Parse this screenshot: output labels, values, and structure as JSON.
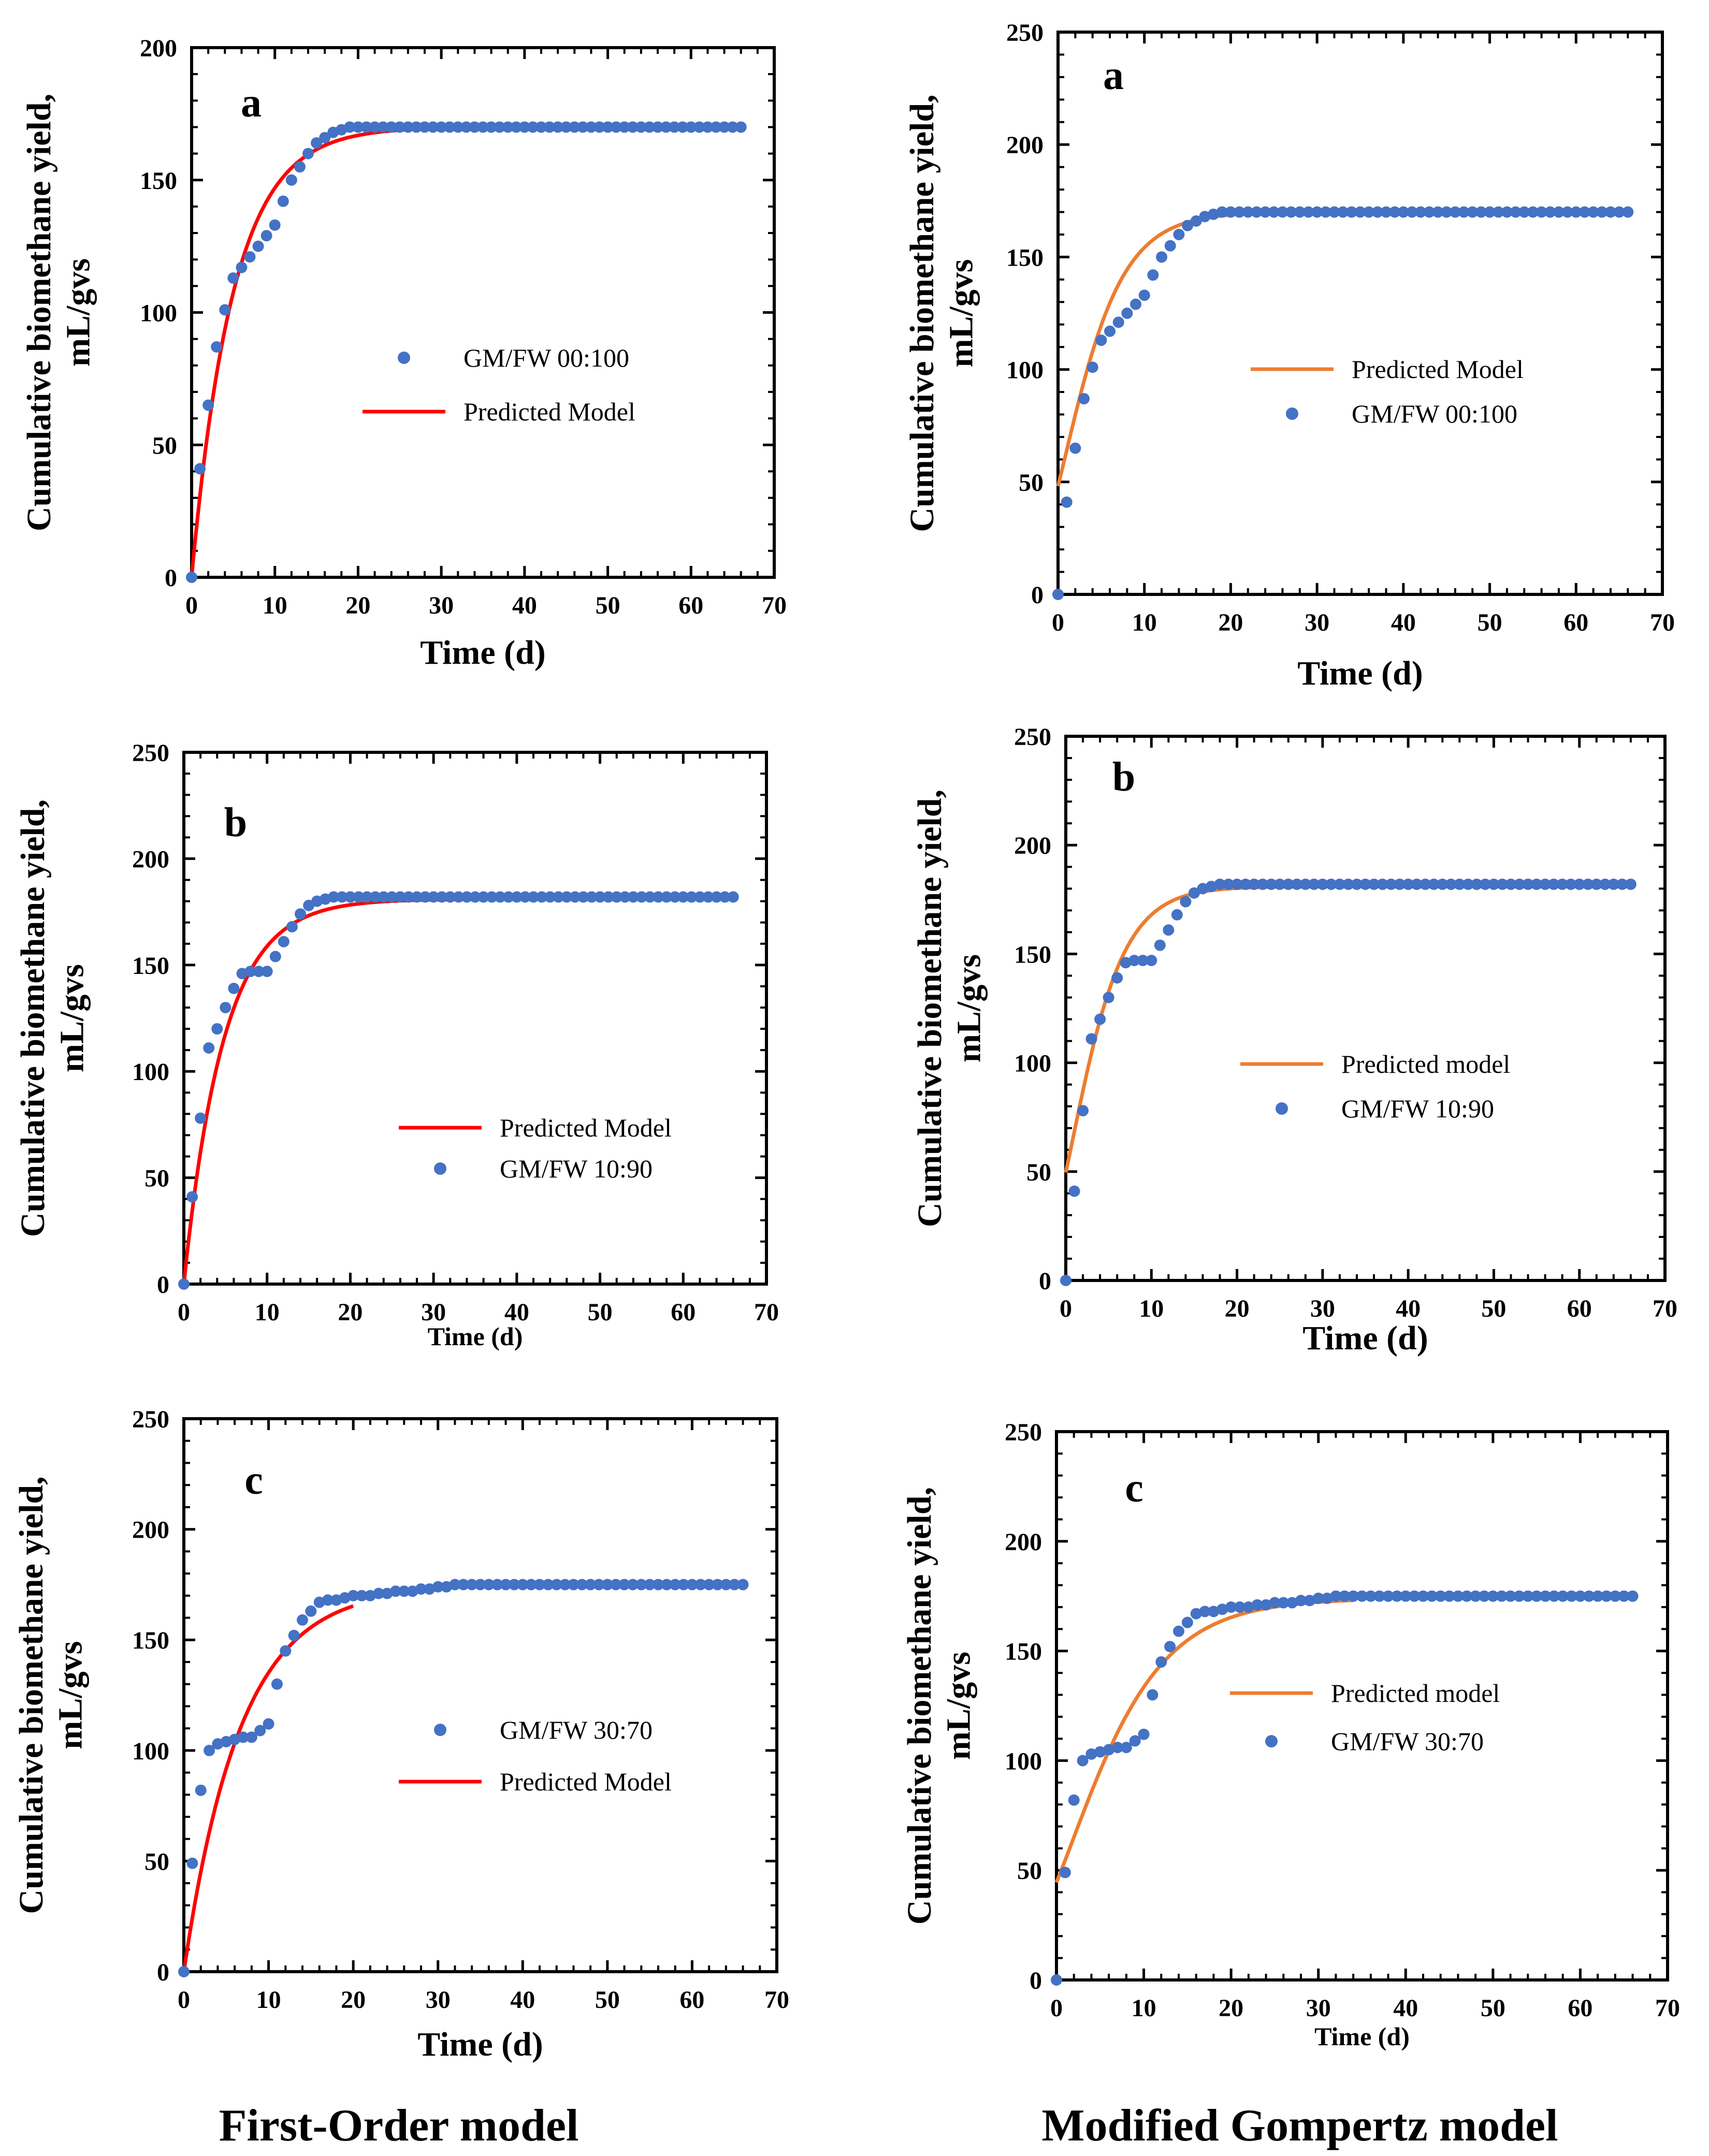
{
  "footer": {
    "left": "First-Order model",
    "right": "Modified Gompertz model"
  },
  "chart_data": [
    {
      "type": "scatter",
      "panel": "a",
      "model": "First-Order model",
      "title": "a",
      "xlabel": "Time (d)",
      "ylabel": "Cumulative biomethane yield, mL/gvs",
      "xlim": [
        0,
        70
      ],
      "ylim": [
        0,
        200
      ],
      "xticks": [
        "0",
        "10",
        "20",
        "30",
        "40",
        "50",
        "60",
        "70"
      ],
      "yticks": [
        "0",
        "50",
        "100",
        "150",
        "200"
      ],
      "legend": [
        {
          "label": "GM/FW 00:100",
          "kind": "marker",
          "color": "#4472C4"
        },
        {
          "label": "Predicted Model",
          "kind": "line",
          "color": "#FF0000"
        }
      ],
      "observed": {
        "name": "GM/FW 00:100",
        "x": [
          0,
          1,
          2,
          3,
          4,
          5,
          6,
          7,
          8,
          9,
          10,
          11,
          12,
          13,
          14,
          15,
          16,
          17,
          18,
          19,
          20,
          21,
          22,
          23,
          24,
          25,
          26,
          27,
          28,
          29,
          30,
          31,
          32,
          33,
          34,
          35,
          36,
          37,
          38,
          39,
          40,
          41,
          42,
          43,
          44,
          45,
          46,
          47,
          48,
          49,
          50,
          51,
          52,
          53,
          54,
          55,
          56,
          57,
          58,
          59,
          60,
          61,
          62,
          63,
          64,
          65,
          66
        ],
        "y": [
          0,
          41,
          65,
          87,
          101,
          113,
          117,
          121,
          125,
          129,
          133,
          142,
          150,
          155,
          160,
          164,
          166,
          168,
          169,
          170,
          170,
          170,
          170,
          170,
          170,
          170,
          170,
          170,
          170,
          170,
          170,
          170,
          170,
          170,
          170,
          170,
          170,
          170,
          170,
          170,
          170,
          170,
          170,
          170,
          170,
          170,
          170,
          170,
          170,
          170,
          170,
          170,
          170,
          170,
          170,
          170,
          170,
          170,
          170,
          170,
          170,
          170,
          170,
          170,
          170,
          170,
          170
        ]
      },
      "predicted": {
        "name": "Predicted Model",
        "model": "first-order",
        "P": 170,
        "k": 0.2,
        "x0": 0,
        "x1": 66
      }
    },
    {
      "type": "scatter",
      "panel": "a",
      "model": "Modified Gompertz model",
      "title": "a",
      "xlabel": "Time (d)",
      "ylabel": "Cumulative biomethane yield, mL/gvs",
      "xlim": [
        0,
        70
      ],
      "ylim": [
        0,
        250
      ],
      "xticks": [
        "0",
        "10",
        "20",
        "30",
        "40",
        "50",
        "60",
        "70"
      ],
      "yticks": [
        "0",
        "50",
        "100",
        "150",
        "200",
        "250"
      ],
      "legend": [
        {
          "label": "Predicted Model",
          "kind": "line",
          "color": "#ED7D31"
        },
        {
          "label": "GM/FW 00:100",
          "kind": "marker",
          "color": "#4472C4"
        }
      ],
      "observed": {
        "name": "GM/FW 00:100",
        "x": [
          0,
          1,
          2,
          3,
          4,
          5,
          6,
          7,
          8,
          9,
          10,
          11,
          12,
          13,
          14,
          15,
          16,
          17,
          18,
          19,
          20,
          21,
          22,
          23,
          24,
          25,
          26,
          27,
          28,
          29,
          30,
          31,
          32,
          33,
          34,
          35,
          36,
          37,
          38,
          39,
          40,
          41,
          42,
          43,
          44,
          45,
          46,
          47,
          48,
          49,
          50,
          51,
          52,
          53,
          54,
          55,
          56,
          57,
          58,
          59,
          60,
          61,
          62,
          63,
          64,
          65,
          66
        ],
        "y": [
          0,
          41,
          65,
          87,
          101,
          113,
          117,
          121,
          125,
          129,
          133,
          142,
          150,
          155,
          160,
          164,
          166,
          168,
          169,
          170,
          170,
          170,
          170,
          170,
          170,
          170,
          170,
          170,
          170,
          170,
          170,
          170,
          170,
          170,
          170,
          170,
          170,
          170,
          170,
          170,
          170,
          170,
          170,
          170,
          170,
          170,
          170,
          170,
          170,
          170,
          170,
          170,
          170,
          170,
          170,
          170,
          170,
          170,
          170,
          170,
          170,
          170,
          170,
          170,
          170,
          170,
          170
        ]
      },
      "predicted": {
        "name": "Predicted Model",
        "model": "gompertz",
        "P": 170,
        "Rm": 16,
        "lambda": -3.0,
        "x0": 0,
        "x1": 66
      }
    },
    {
      "type": "scatter",
      "panel": "b",
      "model": "First-Order model",
      "title": "b",
      "xlabel": "Time (d)",
      "ylabel": "Cumulative biomethane yield, mL/gvs",
      "xlim": [
        0,
        70
      ],
      "ylim": [
        0,
        250
      ],
      "xticks": [
        "0",
        "10",
        "20",
        "30",
        "40",
        "50",
        "60",
        "70"
      ],
      "yticks": [
        "0",
        "50",
        "100",
        "150",
        "200",
        "250"
      ],
      "legend": [
        {
          "label": "Predicted Model",
          "kind": "line",
          "color": "#FF0000"
        },
        {
          "label": "GM/FW 10:90",
          "kind": "marker",
          "color": "#4472C4"
        }
      ],
      "observed": {
        "name": "GM/FW 10:90",
        "x": [
          0,
          1,
          2,
          3,
          4,
          5,
          6,
          7,
          8,
          9,
          10,
          11,
          12,
          13,
          14,
          15,
          16,
          17,
          18,
          19,
          20,
          21,
          22,
          23,
          24,
          25,
          26,
          27,
          28,
          29,
          30,
          31,
          32,
          33,
          34,
          35,
          36,
          37,
          38,
          39,
          40,
          41,
          42,
          43,
          44,
          45,
          46,
          47,
          48,
          49,
          50,
          51,
          52,
          53,
          54,
          55,
          56,
          57,
          58,
          59,
          60,
          61,
          62,
          63,
          64,
          65,
          66
        ],
        "y": [
          0,
          41,
          78,
          111,
          120,
          130,
          139,
          146,
          147,
          147,
          147,
          154,
          161,
          168,
          174,
          178,
          180,
          181,
          182,
          182,
          182,
          182,
          182,
          182,
          182,
          182,
          182,
          182,
          182,
          182,
          182,
          182,
          182,
          182,
          182,
          182,
          182,
          182,
          182,
          182,
          182,
          182,
          182,
          182,
          182,
          182,
          182,
          182,
          182,
          182,
          182,
          182,
          182,
          182,
          182,
          182,
          182,
          182,
          182,
          182,
          182,
          182,
          182,
          182,
          182,
          182,
          182
        ]
      },
      "predicted": {
        "name": "Predicted Model",
        "model": "first-order",
        "P": 181,
        "k": 0.21,
        "x0": 0,
        "x1": 66
      }
    },
    {
      "type": "scatter",
      "panel": "b",
      "model": "Modified Gompertz model",
      "title": "b",
      "xlabel": "Time (d)",
      "ylabel": "Cumulative biomethane yield, mL/gvs",
      "xlim": [
        0,
        70
      ],
      "ylim": [
        0,
        250
      ],
      "xticks": [
        "0",
        "10",
        "20",
        "30",
        "40",
        "50",
        "60",
        "70"
      ],
      "yticks": [
        "0",
        "50",
        "100",
        "150",
        "200",
        "250"
      ],
      "legend": [
        {
          "label": "Predicted model",
          "kind": "line",
          "color": "#ED7D31"
        },
        {
          "label": "GM/FW 10:90",
          "kind": "marker",
          "color": "#4472C4"
        }
      ],
      "observed": {
        "name": "GM/FW 10:90",
        "x": [
          0,
          1,
          2,
          3,
          4,
          5,
          6,
          7,
          8,
          9,
          10,
          11,
          12,
          13,
          14,
          15,
          16,
          17,
          18,
          19,
          20,
          21,
          22,
          23,
          24,
          25,
          26,
          27,
          28,
          29,
          30,
          31,
          32,
          33,
          34,
          35,
          36,
          37,
          38,
          39,
          40,
          41,
          42,
          43,
          44,
          45,
          46,
          47,
          48,
          49,
          50,
          51,
          52,
          53,
          54,
          55,
          56,
          57,
          58,
          59,
          60,
          61,
          62,
          63,
          64,
          65,
          66
        ],
        "y": [
          0,
          41,
          78,
          111,
          120,
          130,
          139,
          146,
          147,
          147,
          147,
          154,
          161,
          168,
          174,
          178,
          180,
          181,
          182,
          182,
          182,
          182,
          182,
          182,
          182,
          182,
          182,
          182,
          182,
          182,
          182,
          182,
          182,
          182,
          182,
          182,
          182,
          182,
          182,
          182,
          182,
          182,
          182,
          182,
          182,
          182,
          182,
          182,
          182,
          182,
          182,
          182,
          182,
          182,
          182,
          182,
          182,
          182,
          182,
          182,
          182,
          182,
          182,
          182,
          182,
          182,
          182
        ]
      },
      "predicted": {
        "name": "Predicted model",
        "model": "gompertz",
        "P": 181,
        "Rm": 19,
        "lambda": -2.6,
        "x0": 0,
        "x1": 66
      }
    },
    {
      "type": "scatter",
      "panel": "c",
      "model": "First-Order model",
      "title": "c",
      "xlabel": "Time (d)",
      "ylabel": "Cumulative biomethane yield, mL/gvs",
      "xlim": [
        0,
        70
      ],
      "ylim": [
        0,
        250
      ],
      "xticks": [
        "0",
        "10",
        "20",
        "30",
        "40",
        "50",
        "60",
        "70"
      ],
      "yticks": [
        "0",
        "50",
        "100",
        "150",
        "200",
        "250"
      ],
      "legend": [
        {
          "label": "GM/FW 30:70",
          "kind": "marker",
          "color": "#4472C4"
        },
        {
          "label": "Predicted Model",
          "kind": "line",
          "color": "#FF0000"
        }
      ],
      "observed": {
        "name": "GM/FW 30:70",
        "x": [
          0,
          1,
          2,
          3,
          4,
          5,
          6,
          7,
          8,
          9,
          10,
          11,
          12,
          13,
          14,
          15,
          16,
          17,
          18,
          19,
          20,
          21,
          22,
          23,
          24,
          25,
          26,
          27,
          28,
          29,
          30,
          31,
          32,
          33,
          34,
          35,
          36,
          37,
          38,
          39,
          40,
          41,
          42,
          43,
          44,
          45,
          46,
          47,
          48,
          49,
          50,
          51,
          52,
          53,
          54,
          55,
          56,
          57,
          58,
          59,
          60,
          61,
          62,
          63,
          64,
          65,
          66
        ],
        "y": [
          0,
          49,
          82,
          100,
          103,
          104,
          105,
          106,
          106,
          109,
          112,
          130,
          145,
          152,
          159,
          163,
          167,
          168,
          168,
          169,
          170,
          170,
          170,
          171,
          171,
          172,
          172,
          172,
          173,
          173,
          174,
          174,
          175,
          175,
          175,
          175,
          175,
          175,
          175,
          175,
          175,
          175,
          175,
          175,
          175,
          175,
          175,
          175,
          175,
          175,
          175,
          175,
          175,
          175,
          175,
          175,
          175,
          175,
          175,
          175,
          175,
          175,
          175,
          175,
          175,
          175,
          175
        ]
      },
      "predicted": {
        "name": "Predicted Model",
        "model": "first-order",
        "P": 174,
        "k": 0.15,
        "x0": 0,
        "x1": 20
      }
    },
    {
      "type": "scatter",
      "panel": "c",
      "model": "Modified Gompertz model",
      "title": "c",
      "xlabel": "Time (d)",
      "ylabel": "Cumulative biomethane yield, mL/gvs",
      "xlim": [
        0,
        70
      ],
      "ylim": [
        0,
        250
      ],
      "xticks": [
        "0",
        "10",
        "20",
        "30",
        "40",
        "50",
        "60",
        "70"
      ],
      "yticks": [
        "0",
        "50",
        "100",
        "150",
        "200",
        "250"
      ],
      "legend": [
        {
          "label": "Predicted model",
          "kind": "line",
          "color": "#ED7D31"
        },
        {
          "label": "GM/FW 30:70",
          "kind": "marker",
          "color": "#4472C4"
        }
      ],
      "observed": {
        "name": "GM/FW 30:70",
        "x": [
          0,
          1,
          2,
          3,
          4,
          5,
          6,
          7,
          8,
          9,
          10,
          11,
          12,
          13,
          14,
          15,
          16,
          17,
          18,
          19,
          20,
          21,
          22,
          23,
          24,
          25,
          26,
          27,
          28,
          29,
          30,
          31,
          32,
          33,
          34,
          35,
          36,
          37,
          38,
          39,
          40,
          41,
          42,
          43,
          44,
          45,
          46,
          47,
          48,
          49,
          50,
          51,
          52,
          53,
          54,
          55,
          56,
          57,
          58,
          59,
          60,
          61,
          62,
          63,
          64,
          65,
          66
        ],
        "y": [
          0,
          49,
          82,
          100,
          103,
          104,
          105,
          106,
          106,
          109,
          112,
          130,
          145,
          152,
          159,
          163,
          167,
          168,
          168,
          169,
          170,
          170,
          170,
          171,
          171,
          172,
          172,
          172,
          173,
          173,
          174,
          174,
          175,
          175,
          175,
          175,
          175,
          175,
          175,
          175,
          175,
          175,
          175,
          175,
          175,
          175,
          175,
          175,
          175,
          175,
          175,
          175,
          175,
          175,
          175,
          175,
          175,
          175,
          175,
          175,
          175,
          175,
          175,
          175,
          175,
          175,
          175
        ]
      },
      "predicted": {
        "name": "Predicted model",
        "model": "gompertz",
        "P": 174,
        "Rm": 10.5,
        "lambda": -4.2,
        "x0": 0,
        "x1": 34
      }
    }
  ]
}
